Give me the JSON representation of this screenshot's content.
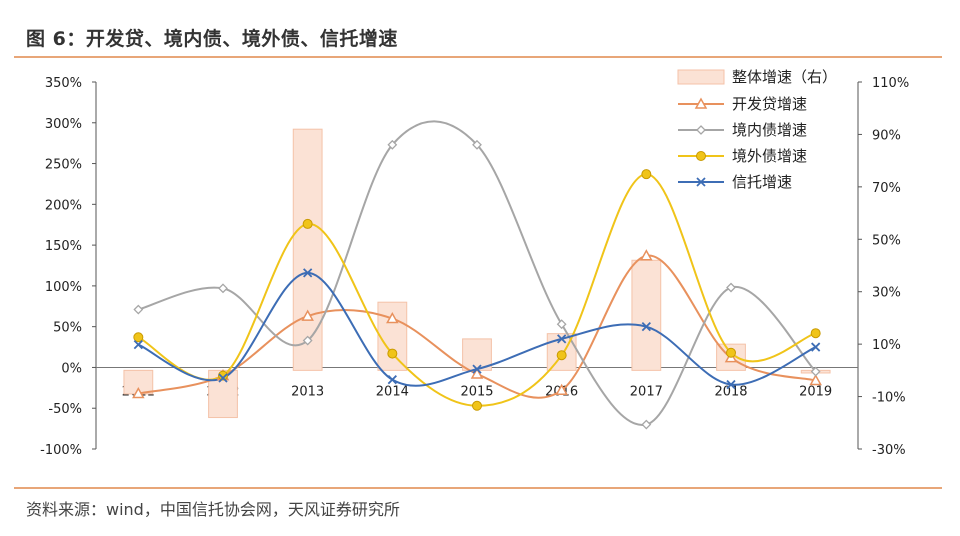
{
  "header": {
    "title": "图 6：开发贷、境内债、境外债、信托增速"
  },
  "footer": {
    "source": "资料来源：wind，中国信托协会网，天风证券研究所"
  },
  "chart_data": {
    "type": "line",
    "categories": [
      "2011",
      "2012",
      "2013",
      "2014",
      "2015",
      "2016",
      "2017",
      "2018",
      "2019"
    ],
    "left_axis": {
      "min": -100,
      "max": 350,
      "step": 50,
      "ticks": [
        "350%",
        "300%",
        "250%",
        "200%",
        "150%",
        "100%",
        "50%",
        "0%",
        "-50%",
        "-100%"
      ]
    },
    "right_axis": {
      "min": -30,
      "max": 110,
      "step": 20,
      "ticks": [
        "110%",
        "90%",
        "70%",
        "50%",
        "30%",
        "10%",
        "-10%",
        "-30%"
      ]
    },
    "bar_series": {
      "name": "整体增速（右）",
      "axis": "right",
      "color": "#fbe2d5",
      "stroke": "#f4c2a8",
      "values": [
        -9,
        -18,
        92,
        26,
        12,
        14,
        42,
        10,
        -1
      ]
    },
    "series": [
      {
        "name": "开发贷增速",
        "axis": "left",
        "color": "#e8915d",
        "marker": "triangle",
        "values": [
          -32,
          -10,
          63,
          60,
          -8,
          -28,
          137,
          12,
          -16
        ]
      },
      {
        "name": "境内债增速",
        "axis": "left",
        "color": "#a6a6a6",
        "marker": "diamond",
        "values": [
          71,
          97,
          33,
          273,
          273,
          53,
          -70,
          98,
          -5
        ]
      },
      {
        "name": "境外债增速",
        "axis": "left",
        "color": "#f0c419",
        "marker": "circle",
        "values": [
          37,
          -10,
          176,
          17,
          -47,
          15,
          237,
          18,
          42
        ]
      },
      {
        "name": "信托增速",
        "axis": "left",
        "color": "#3d6db5",
        "marker": "x",
        "values": [
          28,
          -13,
          116,
          -15,
          -2,
          35,
          50,
          -21,
          25
        ]
      }
    ],
    "legend_position": "top-right",
    "grid": false
  }
}
